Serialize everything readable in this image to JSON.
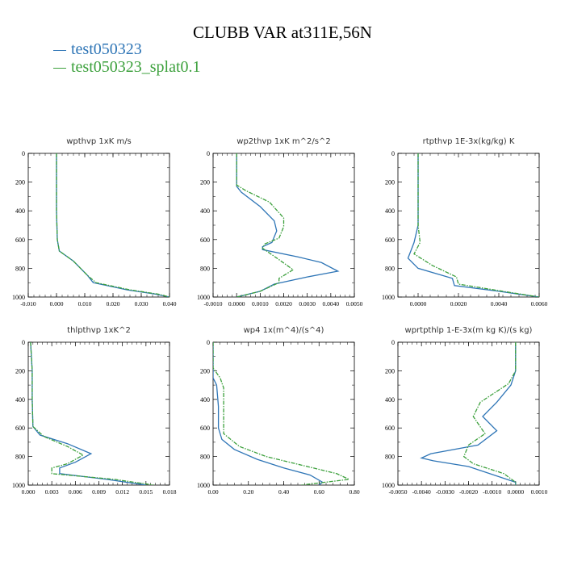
{
  "title": "CLUBB VAR at311E,56N",
  "legend": [
    {
      "label": "test050323",
      "color": "#2E75B6"
    },
    {
      "label": "test050323_splat0.1",
      "color": "#3CA03C"
    }
  ],
  "chart_data": [
    {
      "type": "line",
      "title": "wpthvp   1xK  m/s",
      "xlim": [
        -0.01,
        0.04
      ],
      "ylim": [
        1000,
        0
      ],
      "xticks": [
        "-0.010",
        "0.000",
        "0.010",
        "0.020",
        "0.030",
        "0.040"
      ],
      "yticks": [
        "0",
        "200",
        "400",
        "600",
        "800",
        "1000"
      ],
      "series": [
        {
          "name": "test050323",
          "points": [
            [
              0.0,
              0
            ],
            [
              0.0,
              200
            ],
            [
              0.0,
              400
            ],
            [
              0.0003,
              600
            ],
            [
              0.001,
              680
            ],
            [
              0.006,
              750
            ],
            [
              0.011,
              850
            ],
            [
              0.013,
              900
            ],
            [
              0.025,
              950
            ],
            [
              0.035,
              980
            ],
            [
              0.04,
              1000
            ]
          ]
        },
        {
          "name": "test050323_splat0.1",
          "points": [
            [
              0.0,
              0
            ],
            [
              0.0,
              200
            ],
            [
              0.0,
              400
            ],
            [
              0.0003,
              600
            ],
            [
              0.001,
              680
            ],
            [
              0.006,
              750
            ],
            [
              0.011,
              850
            ],
            [
              0.014,
              900
            ],
            [
              0.026,
              950
            ],
            [
              0.036,
              980
            ],
            [
              0.04,
              1000
            ]
          ]
        }
      ]
    },
    {
      "type": "line",
      "title": "wp2thvp   1xK  m^2/s^2",
      "xlim": [
        -0.001,
        0.005
      ],
      "ylim": [
        1000,
        0
      ],
      "xticks": [
        "-0.0010",
        "0.0000",
        "0.0010",
        "0.0020",
        "0.0030",
        "0.0040",
        "0.0050"
      ],
      "yticks": [
        "0",
        "200",
        "400",
        "600",
        "800",
        "1000"
      ],
      "series": [
        {
          "name": "test050323",
          "points": [
            [
              0.0,
              0
            ],
            [
              0.0,
              230
            ],
            [
              0.0002,
              270
            ],
            [
              0.001,
              370
            ],
            [
              0.0016,
              470
            ],
            [
              0.0017,
              540
            ],
            [
              0.0015,
              620
            ],
            [
              0.0011,
              650
            ],
            [
              0.0011,
              670
            ],
            [
              0.0026,
              720
            ],
            [
              0.0036,
              760
            ],
            [
              0.0043,
              820
            ],
            [
              0.003,
              860
            ],
            [
              0.0016,
              910
            ],
            [
              0.001,
              960
            ],
            [
              0.0,
              1000
            ]
          ]
        },
        {
          "name": "test050323_splat0.1",
          "points": [
            [
              0.0,
              0
            ],
            [
              0.0,
              220
            ],
            [
              0.0004,
              260
            ],
            [
              0.0014,
              340
            ],
            [
              0.002,
              450
            ],
            [
              0.002,
              510
            ],
            [
              0.0018,
              590
            ],
            [
              0.0012,
              630
            ],
            [
              0.0011,
              660
            ],
            [
              0.0018,
              740
            ],
            [
              0.0024,
              810
            ],
            [
              0.0018,
              870
            ],
            [
              0.0018,
              900
            ],
            [
              0.001,
              960
            ],
            [
              0.0,
              1000
            ]
          ]
        }
      ]
    },
    {
      "type": "line",
      "title": "rtpthvp   1E-3x(kg/kg)  K",
      "xlim": [
        -0.001,
        0.006
      ],
      "ylim": [
        1000,
        0
      ],
      "xticks": [
        "0.0000",
        "0.0020",
        "0.0040",
        "0.0060"
      ],
      "yticks": [
        "0",
        "200",
        "400",
        "600",
        "800",
        "1000"
      ],
      "series": [
        {
          "name": "test050323",
          "points": [
            [
              0.0,
              0
            ],
            [
              0.0,
              200
            ],
            [
              0.0,
              400
            ],
            [
              0.0,
              500
            ],
            [
              -0.0002,
              620
            ],
            [
              -0.0005,
              730
            ],
            [
              0.0,
              800
            ],
            [
              0.0017,
              870
            ],
            [
              0.0018,
              920
            ],
            [
              0.004,
              960
            ],
            [
              0.006,
              1000
            ]
          ]
        },
        {
          "name": "test050323_splat0.1",
          "points": [
            [
              0.0,
              0
            ],
            [
              0.0,
              200
            ],
            [
              0.0,
              400
            ],
            [
              0.0,
              500
            ],
            [
              0.0001,
              620
            ],
            [
              -0.0002,
              700
            ],
            [
              0.0007,
              780
            ],
            [
              0.0019,
              860
            ],
            [
              0.002,
              910
            ],
            [
              0.0042,
              960
            ],
            [
              0.006,
              1000
            ]
          ]
        }
      ]
    },
    {
      "type": "line",
      "title": "thlpthvp   1xK^2",
      "xlim": [
        0.0,
        0.018
      ],
      "ylim": [
        1000,
        0
      ],
      "xticks": [
        "0.000",
        "0.003",
        "0.006",
        "0.009",
        "0.012",
        "0.015",
        "0.018"
      ],
      "yticks": [
        "0",
        "200",
        "400",
        "600",
        "800",
        "1000"
      ],
      "series": [
        {
          "name": "test050323",
          "points": [
            [
              0.0003,
              0
            ],
            [
              0.0005,
              200
            ],
            [
              0.0005,
              400
            ],
            [
              0.0006,
              590
            ],
            [
              0.0015,
              650
            ],
            [
              0.005,
              710
            ],
            [
              0.008,
              780
            ],
            [
              0.006,
              840
            ],
            [
              0.004,
              880
            ],
            [
              0.004,
              920
            ],
            [
              0.01,
              960
            ],
            [
              0.015,
              1000
            ]
          ]
        },
        {
          "name": "test050323_splat0.1",
          "points": [
            [
              0.0003,
              0
            ],
            [
              0.0005,
              200
            ],
            [
              0.0005,
              400
            ],
            [
              0.0006,
              590
            ],
            [
              0.002,
              660
            ],
            [
              0.005,
              730
            ],
            [
              0.007,
              790
            ],
            [
              0.005,
              850
            ],
            [
              0.003,
              880
            ],
            [
              0.003,
              920
            ],
            [
              0.011,
              960
            ],
            [
              0.016,
              1000
            ]
          ]
        }
      ]
    },
    {
      "type": "line",
      "title": "wp4   1x(m^4)/(s^4)",
      "xlim": [
        0.0,
        0.8
      ],
      "ylim": [
        1000,
        0
      ],
      "xticks": [
        "0.00",
        "0.20",
        "0.40",
        "0.60",
        "0.80"
      ],
      "yticks": [
        "0",
        "200",
        "400",
        "600",
        "800",
        "1000"
      ],
      "series": [
        {
          "name": "test050323",
          "points": [
            [
              0.0,
              0
            ],
            [
              0.0,
              250
            ],
            [
              0.02,
              300
            ],
            [
              0.03,
              450
            ],
            [
              0.03,
              600
            ],
            [
              0.05,
              680
            ],
            [
              0.12,
              750
            ],
            [
              0.25,
              820
            ],
            [
              0.4,
              880
            ],
            [
              0.55,
              930
            ],
            [
              0.62,
              980
            ],
            [
              0.6,
              1000
            ]
          ]
        },
        {
          "name": "test050323_splat0.1",
          "points": [
            [
              0.0,
              0
            ],
            [
              0.0,
              180
            ],
            [
              0.04,
              250
            ],
            [
              0.06,
              320
            ],
            [
              0.06,
              500
            ],
            [
              0.06,
              640
            ],
            [
              0.15,
              730
            ],
            [
              0.3,
              800
            ],
            [
              0.5,
              860
            ],
            [
              0.7,
              920
            ],
            [
              0.77,
              960
            ],
            [
              0.5,
              1000
            ]
          ]
        }
      ]
    },
    {
      "type": "line",
      "title": "wprtpthlp   1-E-3x(m  kg  K)/(s  kg)",
      "xlim": [
        -0.005,
        0.001
      ],
      "ylim": [
        1000,
        0
      ],
      "xticks": [
        "-0.0050",
        "-0.0040",
        "-0.0030",
        "-0.0020",
        "-0.0010",
        "0.0000",
        "0.0010"
      ],
      "yticks": [
        "0",
        "200",
        "400",
        "600",
        "800",
        "1000"
      ],
      "series": [
        {
          "name": "test050323",
          "points": [
            [
              0.0,
              0
            ],
            [
              0.0,
              200
            ],
            [
              -0.0002,
              300
            ],
            [
              -0.0008,
              420
            ],
            [
              -0.0014,
              520
            ],
            [
              -0.0008,
              620
            ],
            [
              -0.0016,
              720
            ],
            [
              -0.0036,
              780
            ],
            [
              -0.004,
              810
            ],
            [
              -0.0035,
              830
            ],
            [
              -0.002,
              870
            ],
            [
              0.0,
              980
            ],
            [
              0.0,
              1000
            ]
          ]
        },
        {
          "name": "test050323_splat0.1",
          "points": [
            [
              0.0,
              0
            ],
            [
              0.0,
              200
            ],
            [
              -0.0003,
              290
            ],
            [
              -0.0015,
              420
            ],
            [
              -0.0018,
              520
            ],
            [
              -0.0013,
              640
            ],
            [
              -0.002,
              720
            ],
            [
              -0.0022,
              800
            ],
            [
              -0.0018,
              850
            ],
            [
              -0.0005,
              920
            ],
            [
              0.0,
              980
            ],
            [
              0.0,
              1000
            ]
          ]
        }
      ]
    }
  ]
}
